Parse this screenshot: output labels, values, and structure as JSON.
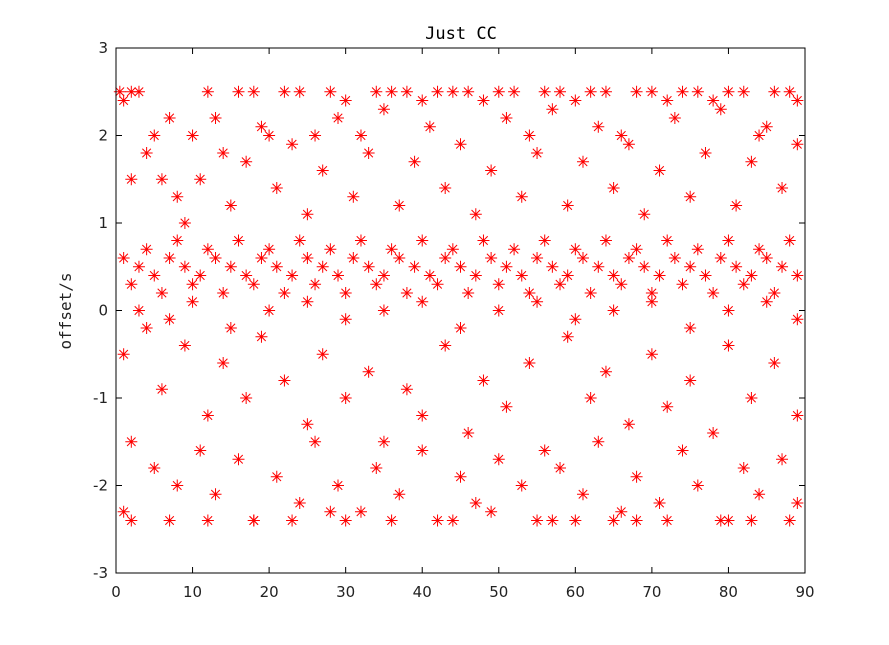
{
  "chart_data": {
    "type": "scatter",
    "title": "Just CC",
    "xlabel": "",
    "ylabel": "offset/s",
    "xlim": [
      0,
      90
    ],
    "ylim": [
      -3,
      3
    ],
    "xticks": [
      0,
      10,
      20,
      30,
      40,
      50,
      60,
      70,
      80,
      90
    ],
    "yticks": [
      -3,
      -2,
      -1,
      0,
      1,
      2,
      3
    ],
    "grid": false,
    "legend": "none",
    "marker": "asterisk",
    "colors": {
      "marker": "#ff0000",
      "axes": "#000000",
      "background": "#ffffff"
    },
    "series": [
      {
        "color": "#ff0000",
        "points": [
          [
            0.5,
            2.5
          ],
          [
            1,
            2.4
          ],
          [
            2,
            2.5
          ],
          [
            3,
            2.5
          ],
          [
            5,
            2.0
          ],
          [
            6,
            1.5
          ],
          [
            8,
            1.3
          ],
          [
            10,
            2.0
          ],
          [
            12,
            2.5
          ],
          [
            14,
            1.8
          ],
          [
            16,
            2.5
          ],
          [
            18,
            2.5
          ],
          [
            20,
            2.0
          ],
          [
            22,
            2.5
          ],
          [
            24,
            2.5
          ],
          [
            26,
            2.0
          ],
          [
            28,
            2.5
          ],
          [
            30,
            2.4
          ],
          [
            32,
            2.0
          ],
          [
            34,
            2.5
          ],
          [
            36,
            2.5
          ],
          [
            38,
            2.5
          ],
          [
            40,
            2.4
          ],
          [
            42,
            2.5
          ],
          [
            44,
            2.5
          ],
          [
            46,
            2.5
          ],
          [
            48,
            2.4
          ],
          [
            50,
            2.5
          ],
          [
            52,
            2.5
          ],
          [
            54,
            2.0
          ],
          [
            56,
            2.5
          ],
          [
            58,
            2.5
          ],
          [
            60,
            2.4
          ],
          [
            62,
            2.5
          ],
          [
            64,
            2.5
          ],
          [
            66,
            2.0
          ],
          [
            68,
            2.5
          ],
          [
            70,
            2.5
          ],
          [
            72,
            2.4
          ],
          [
            74,
            2.5
          ],
          [
            76,
            2.5
          ],
          [
            78,
            2.4
          ],
          [
            80,
            2.5
          ],
          [
            82,
            2.5
          ],
          [
            84,
            2.0
          ],
          [
            86,
            2.5
          ],
          [
            88,
            2.5
          ],
          [
            89,
            2.4
          ],
          [
            2,
            1.5
          ],
          [
            4,
            1.8
          ],
          [
            7,
            2.2
          ],
          [
            9,
            1.0
          ],
          [
            11,
            1.5
          ],
          [
            13,
            2.2
          ],
          [
            15,
            1.2
          ],
          [
            17,
            1.7
          ],
          [
            19,
            2.1
          ],
          [
            21,
            1.4
          ],
          [
            23,
            1.9
          ],
          [
            25,
            1.1
          ],
          [
            27,
            1.6
          ],
          [
            29,
            2.2
          ],
          [
            31,
            1.3
          ],
          [
            33,
            1.8
          ],
          [
            35,
            2.3
          ],
          [
            37,
            1.2
          ],
          [
            39,
            1.7
          ],
          [
            41,
            2.1
          ],
          [
            43,
            1.4
          ],
          [
            45,
            1.9
          ],
          [
            47,
            1.1
          ],
          [
            49,
            1.6
          ],
          [
            51,
            2.2
          ],
          [
            53,
            1.3
          ],
          [
            55,
            1.8
          ],
          [
            57,
            2.3
          ],
          [
            59,
            1.2
          ],
          [
            61,
            1.7
          ],
          [
            63,
            2.1
          ],
          [
            65,
            1.4
          ],
          [
            67,
            1.9
          ],
          [
            69,
            1.1
          ],
          [
            71,
            1.6
          ],
          [
            73,
            2.2
          ],
          [
            75,
            1.3
          ],
          [
            77,
            1.8
          ],
          [
            79,
            2.3
          ],
          [
            81,
            1.2
          ],
          [
            83,
            1.7
          ],
          [
            85,
            2.1
          ],
          [
            87,
            1.4
          ],
          [
            89,
            1.9
          ],
          [
            1,
            0.6
          ],
          [
            3,
            0.5
          ],
          [
            5,
            0.4
          ],
          [
            7,
            0.6
          ],
          [
            9,
            0.5
          ],
          [
            11,
            0.4
          ],
          [
            13,
            0.6
          ],
          [
            15,
            0.5
          ],
          [
            17,
            0.4
          ],
          [
            19,
            0.6
          ],
          [
            21,
            0.5
          ],
          [
            23,
            0.4
          ],
          [
            25,
            0.6
          ],
          [
            27,
            0.5
          ],
          [
            29,
            0.4
          ],
          [
            31,
            0.6
          ],
          [
            33,
            0.5
          ],
          [
            35,
            0.4
          ],
          [
            37,
            0.6
          ],
          [
            39,
            0.5
          ],
          [
            41,
            0.4
          ],
          [
            43,
            0.6
          ],
          [
            45,
            0.5
          ],
          [
            47,
            0.4
          ],
          [
            49,
            0.6
          ],
          [
            51,
            0.5
          ],
          [
            53,
            0.4
          ],
          [
            55,
            0.6
          ],
          [
            57,
            0.5
          ],
          [
            59,
            0.4
          ],
          [
            61,
            0.6
          ],
          [
            63,
            0.5
          ],
          [
            65,
            0.4
          ],
          [
            67,
            0.6
          ],
          [
            69,
            0.5
          ],
          [
            71,
            0.4
          ],
          [
            73,
            0.6
          ],
          [
            75,
            0.5
          ],
          [
            77,
            0.4
          ],
          [
            79,
            0.6
          ],
          [
            81,
            0.5
          ],
          [
            83,
            0.4
          ],
          [
            85,
            0.6
          ],
          [
            87,
            0.5
          ],
          [
            89,
            0.4
          ],
          [
            2,
            0.3
          ],
          [
            4,
            0.7
          ],
          [
            6,
            0.2
          ],
          [
            8,
            0.8
          ],
          [
            10,
            0.3
          ],
          [
            12,
            0.7
          ],
          [
            14,
            0.2
          ],
          [
            16,
            0.8
          ],
          [
            18,
            0.3
          ],
          [
            20,
            0.7
          ],
          [
            22,
            0.2
          ],
          [
            24,
            0.8
          ],
          [
            26,
            0.3
          ],
          [
            28,
            0.7
          ],
          [
            30,
            0.2
          ],
          [
            32,
            0.8
          ],
          [
            34,
            0.3
          ],
          [
            36,
            0.7
          ],
          [
            38,
            0.2
          ],
          [
            40,
            0.8
          ],
          [
            42,
            0.3
          ],
          [
            44,
            0.7
          ],
          [
            46,
            0.2
          ],
          [
            48,
            0.8
          ],
          [
            50,
            0.3
          ],
          [
            52,
            0.7
          ],
          [
            54,
            0.2
          ],
          [
            56,
            0.8
          ],
          [
            58,
            0.3
          ],
          [
            60,
            0.7
          ],
          [
            62,
            0.2
          ],
          [
            64,
            0.8
          ],
          [
            66,
            0.3
          ],
          [
            68,
            0.7
          ],
          [
            70,
            0.2
          ],
          [
            72,
            0.8
          ],
          [
            74,
            0.3
          ],
          [
            76,
            0.7
          ],
          [
            78,
            0.2
          ],
          [
            80,
            0.8
          ],
          [
            82,
            0.3
          ],
          [
            84,
            0.7
          ],
          [
            86,
            0.2
          ],
          [
            88,
            0.8
          ],
          [
            1,
            -0.5
          ],
          [
            4,
            -0.2
          ],
          [
            6,
            -0.9
          ],
          [
            9,
            -0.4
          ],
          [
            12,
            -1.2
          ],
          [
            14,
            -0.6
          ],
          [
            17,
            -1.0
          ],
          [
            19,
            -0.3
          ],
          [
            22,
            -0.8
          ],
          [
            25,
            -1.3
          ],
          [
            27,
            -0.5
          ],
          [
            30,
            -1.0
          ],
          [
            33,
            -0.7
          ],
          [
            35,
            -1.5
          ],
          [
            38,
            -0.9
          ],
          [
            40,
            -1.2
          ],
          [
            43,
            -0.4
          ],
          [
            46,
            -1.4
          ],
          [
            48,
            -0.8
          ],
          [
            51,
            -1.1
          ],
          [
            54,
            -0.6
          ],
          [
            56,
            -1.6
          ],
          [
            59,
            -0.3
          ],
          [
            62,
            -1.0
          ],
          [
            64,
            -0.7
          ],
          [
            67,
            -1.3
          ],
          [
            70,
            -0.5
          ],
          [
            72,
            -1.1
          ],
          [
            75,
            -0.8
          ],
          [
            78,
            -1.4
          ],
          [
            80,
            -0.4
          ],
          [
            83,
            -1.0
          ],
          [
            86,
            -0.6
          ],
          [
            89,
            -1.2
          ],
          [
            2,
            -1.5
          ],
          [
            5,
            -1.8
          ],
          [
            8,
            -2.0
          ],
          [
            11,
            -1.6
          ],
          [
            13,
            -2.1
          ],
          [
            16,
            -1.7
          ],
          [
            18,
            -2.4
          ],
          [
            21,
            -1.9
          ],
          [
            24,
            -2.2
          ],
          [
            26,
            -1.5
          ],
          [
            29,
            -2.0
          ],
          [
            32,
            -2.3
          ],
          [
            34,
            -1.8
          ],
          [
            37,
            -2.1
          ],
          [
            40,
            -1.6
          ],
          [
            42,
            -2.4
          ],
          [
            45,
            -1.9
          ],
          [
            47,
            -2.2
          ],
          [
            50,
            -1.7
          ],
          [
            53,
            -2.0
          ],
          [
            55,
            -2.4
          ],
          [
            58,
            -1.8
          ],
          [
            61,
            -2.1
          ],
          [
            63,
            -1.5
          ],
          [
            66,
            -2.3
          ],
          [
            68,
            -1.9
          ],
          [
            71,
            -2.2
          ],
          [
            74,
            -1.6
          ],
          [
            76,
            -2.0
          ],
          [
            79,
            -2.4
          ],
          [
            82,
            -1.8
          ],
          [
            84,
            -2.1
          ],
          [
            87,
            -1.7
          ],
          [
            89,
            -2.2
          ],
          [
            1,
            -2.3
          ],
          [
            2,
            -2.4
          ],
          [
            7,
            -2.4
          ],
          [
            12,
            -2.4
          ],
          [
            18,
            -2.4
          ],
          [
            23,
            -2.4
          ],
          [
            28,
            -2.3
          ],
          [
            30,
            -2.4
          ],
          [
            36,
            -2.4
          ],
          [
            44,
            -2.4
          ],
          [
            49,
            -2.3
          ],
          [
            57,
            -2.4
          ],
          [
            60,
            -2.4
          ],
          [
            65,
            -2.4
          ],
          [
            68,
            -2.4
          ],
          [
            72,
            -2.4
          ],
          [
            80,
            -2.4
          ],
          [
            83,
            -2.4
          ],
          [
            88,
            -2.4
          ],
          [
            3,
            0.0
          ],
          [
            7,
            -0.1
          ],
          [
            10,
            0.1
          ],
          [
            15,
            -0.2
          ],
          [
            20,
            0.0
          ],
          [
            25,
            0.1
          ],
          [
            30,
            -0.1
          ],
          [
            35,
            0.0
          ],
          [
            40,
            0.1
          ],
          [
            45,
            -0.2
          ],
          [
            50,
            0.0
          ],
          [
            55,
            0.1
          ],
          [
            60,
            -0.1
          ],
          [
            65,
            0.0
          ],
          [
            70,
            0.1
          ],
          [
            75,
            -0.2
          ],
          [
            80,
            0.0
          ],
          [
            85,
            0.1
          ],
          [
            89,
            -0.1
          ]
        ]
      }
    ]
  }
}
